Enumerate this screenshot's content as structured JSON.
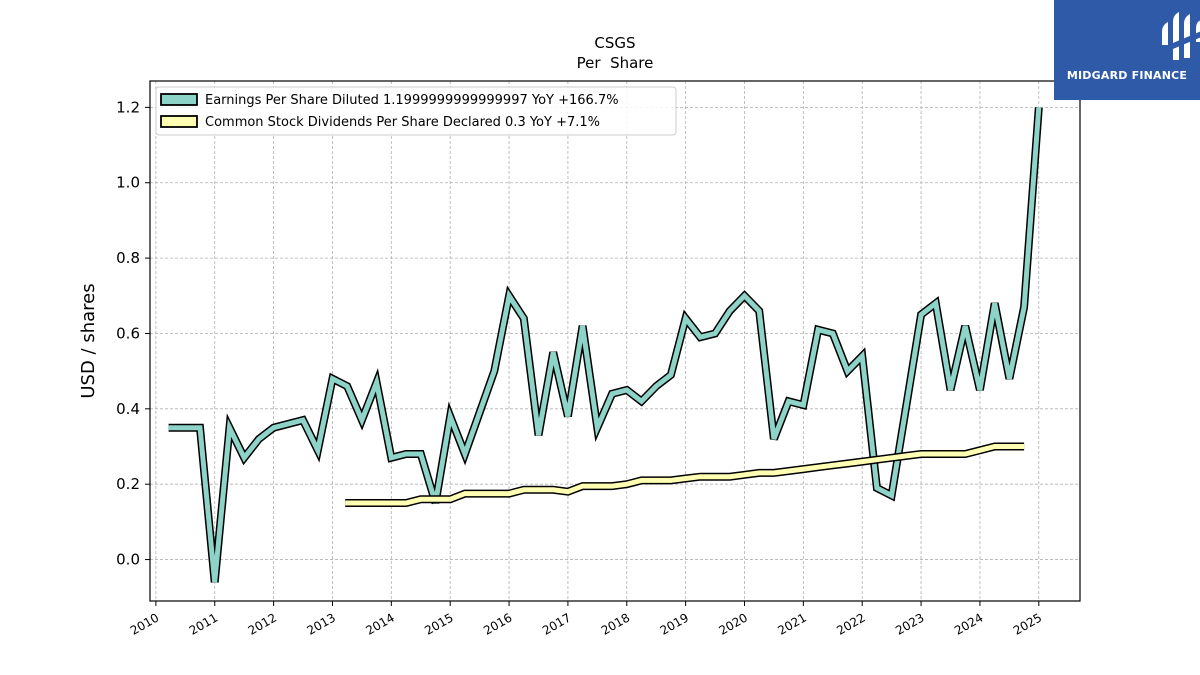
{
  "brand": {
    "name": "MIDGARD FINANCE",
    "background": "#2f5aa8",
    "icon": "midgard-finance-logo-icon"
  },
  "chart_data": {
    "type": "line",
    "title": "CSGS",
    "subtitle": "Per  Share",
    "xlabel": "",
    "ylabel": "USD / shares",
    "xlim": [
      2009.9,
      2025.7
    ],
    "ylim": [
      -0.11,
      1.27
    ],
    "x_ticks": [
      2010,
      2011,
      2012,
      2013,
      2014,
      2015,
      2016,
      2017,
      2018,
      2019,
      2020,
      2021,
      2022,
      2023,
      2024,
      2025
    ],
    "y_ticks": [
      0.0,
      0.2,
      0.4,
      0.6,
      0.8,
      1.0,
      1.2
    ],
    "y_tick_labels": [
      "0.0",
      "0.2",
      "0.4",
      "0.6",
      "0.8",
      "1.0",
      "1.2"
    ],
    "grid": true,
    "legend_position": "top-left",
    "series": [
      {
        "name": "Earnings Per Share Diluted  1.1999999999999997 YoY +166.7%",
        "color": "#8dd3c7",
        "x": [
          2010.42,
          2010.75,
          2011.0,
          2011.25,
          2011.5,
          2011.75,
          2012.0,
          2012.5,
          2012.75,
          2013.0,
          2013.25,
          2013.5,
          2013.75,
          2014.0,
          2014.25,
          2014.5,
          2014.75,
          2015.0,
          2015.25,
          2015.5,
          2015.75,
          2016.0,
          2016.25,
          2016.5,
          2016.75,
          2017.0,
          2017.25,
          2017.5,
          2017.75,
          2018.0,
          2018.25,
          2018.5,
          2018.75,
          2019.0,
          2019.25,
          2019.5,
          2019.75,
          2020.0,
          2020.25,
          2020.5,
          2020.75,
          2021.0,
          2021.25,
          2021.5,
          2021.75,
          2022.0,
          2022.25,
          2022.5,
          2022.75,
          2023.0,
          2023.25,
          2023.5,
          2023.75,
          2024.0,
          2024.25,
          2024.5,
          2024.75,
          2025.0
        ],
        "y": [
          0.35,
          0.35,
          -0.06,
          0.35,
          0.27,
          0.32,
          0.35,
          0.37,
          0.29,
          0.48,
          0.46,
          0.37,
          0.47,
          0.27,
          0.28,
          0.28,
          0.15,
          0.38,
          0.28,
          0.39,
          0.5,
          0.7,
          0.64,
          0.33,
          0.55,
          0.38,
          0.62,
          0.35,
          0.44,
          0.45,
          0.42,
          0.46,
          0.49,
          0.64,
          0.59,
          0.6,
          0.66,
          0.7,
          0.66,
          0.32,
          0.42,
          0.41,
          0.61,
          0.6,
          0.5,
          0.54,
          0.19,
          0.17,
          0.41,
          0.65,
          0.68,
          0.45,
          0.62,
          0.45,
          0.68,
          0.48,
          0.67,
          1.2
        ]
      },
      {
        "name": "Common Stock Dividends Per Share Declared  0.3 YoY +7.1%",
        "color": "#ffffb3",
        "x": [
          2013.42,
          2013.75,
          2014.0,
          2014.25,
          2014.5,
          2014.75,
          2015.0,
          2015.25,
          2015.5,
          2015.75,
          2016.0,
          2016.25,
          2016.5,
          2016.75,
          2017.0,
          2017.25,
          2017.5,
          2017.75,
          2018.0,
          2018.25,
          2018.5,
          2018.75,
          2019.0,
          2019.25,
          2019.5,
          2019.75,
          2020.0,
          2020.25,
          2020.5,
          2020.75,
          2021.0,
          2021.25,
          2021.5,
          2021.75,
          2022.0,
          2022.25,
          2022.5,
          2022.75,
          2023.0,
          2023.25,
          2023.5,
          2023.75,
          2024.0,
          2024.25,
          2024.5,
          2024.75
        ],
        "y": [
          0.15,
          0.15,
          0.15,
          0.15,
          0.16,
          0.16,
          0.16,
          0.175,
          0.175,
          0.175,
          0.175,
          0.185,
          0.185,
          0.185,
          0.18,
          0.195,
          0.195,
          0.195,
          0.2,
          0.21,
          0.21,
          0.21,
          0.215,
          0.22,
          0.22,
          0.22,
          0.225,
          0.23,
          0.23,
          0.235,
          0.24,
          0.245,
          0.25,
          0.255,
          0.26,
          0.265,
          0.27,
          0.275,
          0.28,
          0.28,
          0.28,
          0.28,
          0.29,
          0.3,
          0.3,
          0.3
        ]
      }
    ]
  }
}
